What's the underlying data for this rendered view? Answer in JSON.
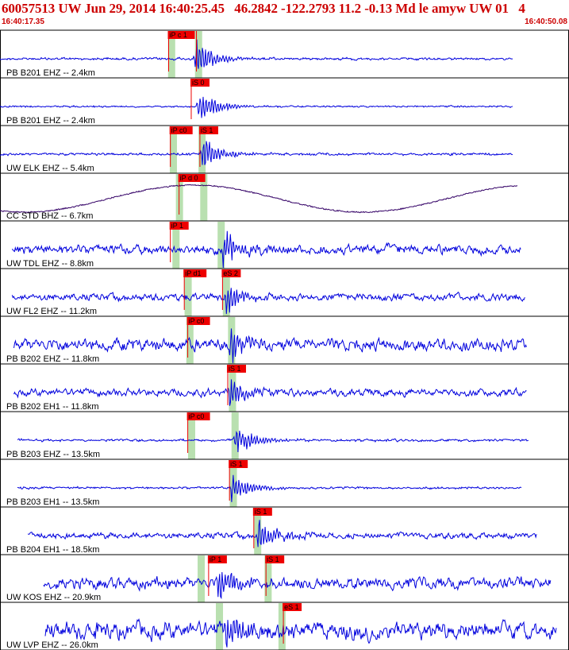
{
  "header": {
    "title": "60057513 UW Jun 29, 2014 16:40:25.45   46.2842 -122.2793 11.2 -0.13 Md le amyw UW 01   4",
    "start_time": "16:40:17.35",
    "end_time": "16:40:50.08"
  },
  "colors": {
    "trace": "#0000dd",
    "lowfreq_trace": "#330066",
    "pick_box": "#ee0000",
    "pick_line": "#ee0000",
    "window_band": "#b9e0b0",
    "separator": "#000000"
  },
  "chart_data": {
    "type": "seismogram",
    "time_range_s": [
      0,
      32.73
    ],
    "traces": [
      {
        "label": "PB B201 EHZ -- 2.4km",
        "t_start": 0.0,
        "t_end": 29.5,
        "noise": 0.1,
        "arrival": 11.2,
        "amp": 1.0,
        "picks": [
          {
            "text": "iP c 1",
            "t": 9.7
          },
          {
            "text": "",
            "t": 11.3
          }
        ],
        "bands": [
          9.85,
          11.4
        ],
        "lowfreq": false
      },
      {
        "label": "PB B201 EHZ -- 2.4km",
        "t_start": 0.0,
        "t_end": 29.5,
        "noise": 0.05,
        "arrival": 11.4,
        "amp": 0.9,
        "picks": [
          {
            "text": "iS 0",
            "t": 11.0
          }
        ],
        "bands": [],
        "lowfreq": false
      },
      {
        "label": "UW ELK EHZ -- 5.4km",
        "t_start": 0.0,
        "t_end": 29.5,
        "noise": 0.1,
        "arrival": 11.6,
        "amp": 0.9,
        "picks": [
          {
            "text": "iP c0",
            "t": 9.8
          },
          {
            "text": "iS 1",
            "t": 11.5
          }
        ],
        "bands": [
          9.95,
          11.6
        ],
        "lowfreq": false
      },
      {
        "label": "CC STD BHZ -- 6.7km",
        "t_start": 0.0,
        "t_end": 29.8,
        "noise": 0.03,
        "arrival": 10.4,
        "amp": 0.2,
        "picks": [
          {
            "text": "iP d 0",
            "t": 10.3
          }
        ],
        "bands": [
          10.3,
          11.7
        ],
        "lowfreq": true
      },
      {
        "label": "UW TDL EHZ -- 8.8km",
        "t_start": 0.7,
        "t_end": 30.0,
        "noise": 0.45,
        "arrival": 12.8,
        "amp": 1.0,
        "picks": [
          {
            "text": "iP 1",
            "t": 9.8
          }
        ],
        "bands": [
          10.1,
          12.7
        ],
        "lowfreq": false
      },
      {
        "label": "UW FL2 EHZ -- 11.2km",
        "t_start": 0.7,
        "t_end": 30.2,
        "noise": 0.35,
        "arrival": 13.0,
        "amp": 0.8,
        "picks": [
          {
            "text": "iP d1",
            "t": 10.6
          },
          {
            "text": "eS 2",
            "t": 12.8
          }
        ],
        "bands": [
          10.8,
          13.0
        ],
        "lowfreq": false
      },
      {
        "label": "PB B202 EHZ -- 11.8km",
        "t_start": 0.8,
        "t_end": 30.3,
        "noise": 0.6,
        "arrival": 13.2,
        "amp": 0.9,
        "picks": [
          {
            "text": "iP c0",
            "t": 10.8
          }
        ],
        "bands": [
          10.9,
          13.3
        ],
        "lowfreq": false
      },
      {
        "label": "PB B202 EH1 -- 11.8km",
        "t_start": 0.8,
        "t_end": 30.3,
        "noise": 0.35,
        "arrival": 13.2,
        "amp": 0.8,
        "picks": [
          {
            "text": "iS 1",
            "t": 13.1
          }
        ],
        "bands": [
          13.35
        ],
        "lowfreq": false
      },
      {
        "label": "PB B203 EHZ -- 13.5km",
        "t_start": 1.0,
        "t_end": 30.4,
        "noise": 0.1,
        "arrival": 13.5,
        "amp": 0.9,
        "picks": [
          {
            "text": "iP c0",
            "t": 10.8
          }
        ],
        "bands": [
          11.0,
          13.5
        ],
        "lowfreq": false
      },
      {
        "label": "PB B203 EH1 -- 13.5km",
        "t_start": 1.0,
        "t_end": 30.0,
        "noise": 0.08,
        "arrival": 13.3,
        "amp": 0.8,
        "picks": [
          {
            "text": "iS 1",
            "t": 13.2
          }
        ],
        "bands": [
          13.4
        ],
        "lowfreq": false
      },
      {
        "label": "PB B204 EH1 -- 18.5km",
        "t_start": 1.6,
        "t_end": 30.9,
        "noise": 0.3,
        "arrival": 14.8,
        "amp": 0.9,
        "picks": [
          {
            "text": "iS 1",
            "t": 14.6
          }
        ],
        "bands": [
          14.8
        ],
        "lowfreq": false
      },
      {
        "label": "UW KOS EHZ -- 20.9km",
        "t_start": 2.5,
        "t_end": 31.7,
        "noise": 0.55,
        "arrival": 12.5,
        "amp": 1.0,
        "picks": [
          {
            "text": "iP 1",
            "t": 12.0
          },
          {
            "text": "iS 1",
            "t": 15.3
          }
        ],
        "bands": [
          11.55,
          15.4
        ],
        "lowfreq": false
      },
      {
        "label": "UW LVP EHZ -- 26.0km",
        "t_start": 2.6,
        "t_end": 32.0,
        "noise": 0.85,
        "arrival": 13.0,
        "amp": 1.0,
        "picks": [
          {
            "text": "eS 1",
            "t": 16.3
          }
        ],
        "bands": [
          12.6,
          16.2
        ],
        "lowfreq": false
      }
    ]
  }
}
